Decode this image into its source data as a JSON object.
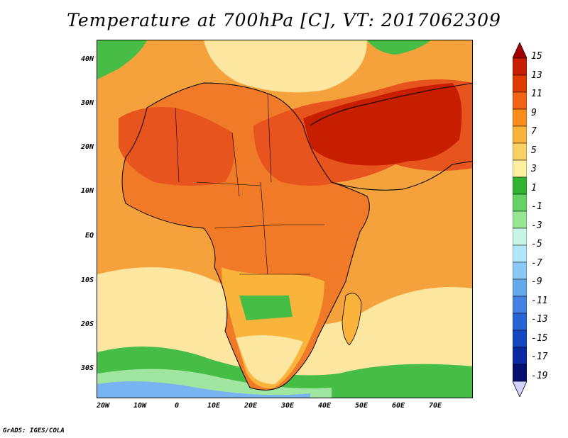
{
  "title": "Temperature at 700hPa [C], VT: 2017062309",
  "credit": "GrADS: IGES/COLA",
  "lat_labels": [
    "40N",
    "30N",
    "20N",
    "10N",
    "EQ",
    "10S",
    "20S",
    "30S"
  ],
  "lon_labels": [
    "20W",
    "10W",
    "0",
    "10E",
    "20E",
    "30E",
    "40E",
    "50E",
    "60E",
    "70E"
  ],
  "colorbar": {
    "labels": [
      "15",
      "13",
      "11",
      "9",
      "7",
      "5",
      "3",
      "1",
      "-1",
      "-3",
      "-5",
      "-7",
      "-9",
      "-11",
      "-13",
      "-15",
      "-17",
      "-19"
    ],
    "colors": [
      "#a50000",
      "#c81e00",
      "#e03c00",
      "#f06414",
      "#fa8c1e",
      "#fab43c",
      "#fad264",
      "#fff0a0",
      "#32b432",
      "#64d264",
      "#96e696",
      "#c8f5e6",
      "#b4e6fa",
      "#8cc8f5",
      "#64aaeb",
      "#4682e1",
      "#2864d2",
      "#1446be",
      "#0a28a0",
      "#050f6e",
      "#d2d2ff"
    ]
  },
  "map_colors": {
    "ocean_warm": "#f5a23c",
    "ocean_cool": "#fde6a0",
    "land_hot": "#e8541e",
    "land_very_hot": "#c81e00",
    "land_warm": "#f07a28",
    "land_mild": "#f8b84a",
    "green_cold": "#46be46",
    "light_green": "#a0e6a0",
    "blue_cold": "#78b4f0",
    "outline": "#000000"
  }
}
